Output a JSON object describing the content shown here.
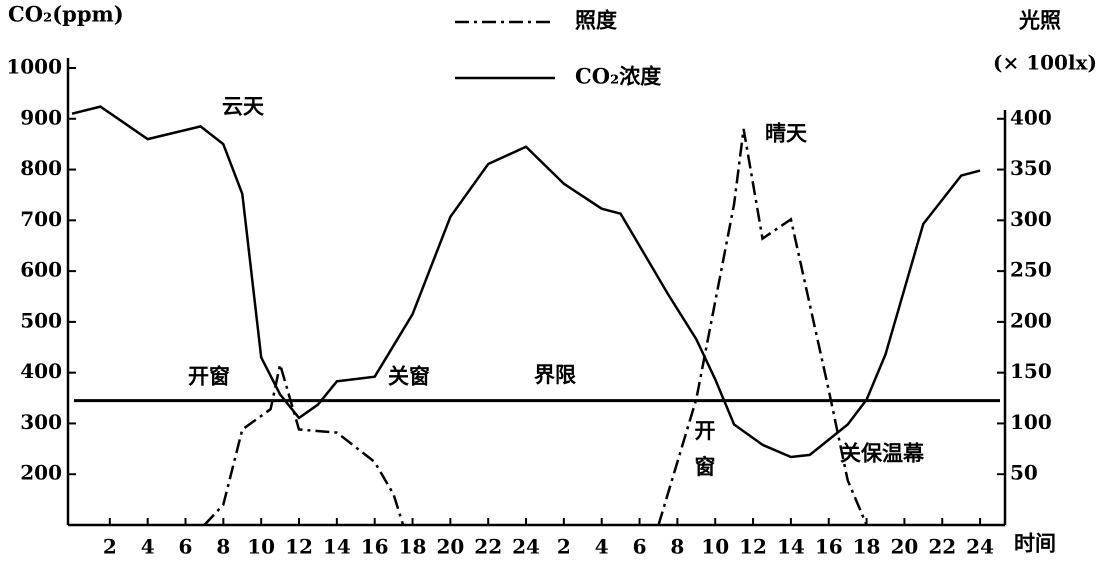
{
  "chart_data": {
    "type": "line",
    "y_label": "CO₂(ppm)",
    "y2_label": "光照",
    "y2_unit": "(× 100lx)",
    "x_label": "时间",
    "xlim": [
      0,
      49
    ],
    "xticks": [
      2,
      4,
      6,
      8,
      10,
      12,
      14,
      16,
      18,
      20,
      22,
      24,
      {
        "value": 26,
        "label": "2"
      },
      {
        "value": 28,
        "label": "4"
      },
      {
        "value": 30,
        "label": "6"
      },
      {
        "value": 32,
        "label": "8"
      },
      {
        "value": 34,
        "label": "10"
      },
      {
        "value": 36,
        "label": "12"
      },
      {
        "value": 38,
        "label": "14"
      },
      {
        "value": 40,
        "label": "16"
      },
      {
        "value": 42,
        "label": "18"
      },
      {
        "value": 44,
        "label": "20"
      },
      {
        "value": 46,
        "label": "22"
      },
      {
        "value": 48,
        "label": "24"
      }
    ],
    "ylim": [
      100,
      1000
    ],
    "yticks": [
      200,
      300,
      400,
      500,
      600,
      700,
      800,
      900,
      1000
    ],
    "y2lim": [
      0,
      450
    ],
    "y2ticks": [
      50,
      100,
      150,
      200,
      250,
      300,
      350,
      400
    ],
    "series": [
      {
        "name": "照度",
        "color": "#000000",
        "dash": "dashdot",
        "axis": "y2",
        "x": [
          7,
          8,
          9,
          10.5,
          11,
          12,
          14,
          16,
          17,
          17.5,
          null,
          31,
          33,
          35,
          35.5,
          36.5,
          38,
          40,
          41,
          42
        ],
        "values": [
          0,
          20,
          94,
          114,
          158,
          94,
          91,
          62,
          30,
          0,
          null,
          0,
          124,
          316,
          390,
          282,
          301,
          133,
          44,
          0
        ]
      },
      {
        "name": "CO₂浓度",
        "color": "#000000",
        "dash": "solid",
        "x": [
          0,
          1.5,
          4,
          6.8,
          8,
          9,
          10,
          11,
          12,
          13,
          14,
          16,
          18,
          20,
          22,
          24,
          26,
          28,
          29,
          31.5,
          33,
          34,
          35,
          36.5,
          38,
          39,
          41,
          42,
          43,
          45,
          47,
          48
        ],
        "values": [
          910,
          924,
          860,
          885,
          850,
          752,
          430,
          357,
          311,
          337,
          383,
          392,
          515,
          707,
          811,
          845,
          772,
          723,
          713,
          555,
          466,
          387,
          298,
          258,
          234,
          238,
          298,
          347,
          436,
          693,
          788,
          798
        ]
      }
    ],
    "threshold": {
      "label": "界限",
      "value": 345
    },
    "annotations": [
      "云天",
      "晴天",
      "开窗",
      "关窗",
      "开\n窗",
      "关保温幕"
    ]
  }
}
